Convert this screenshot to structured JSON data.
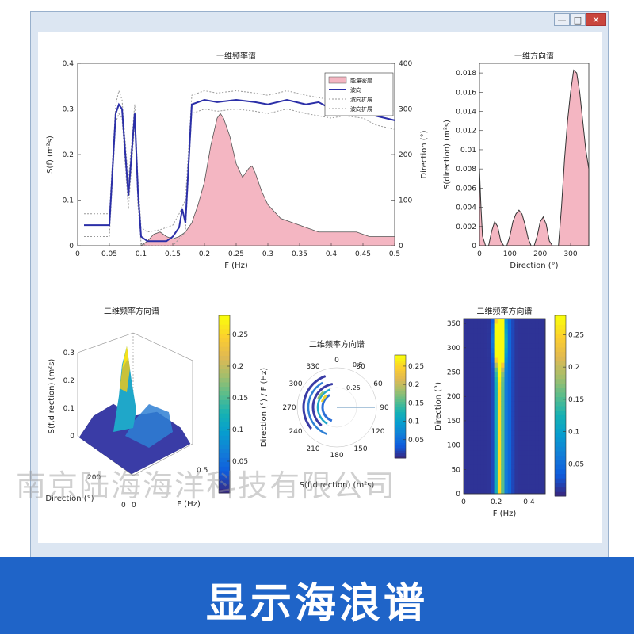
{
  "window": {
    "buttons": [
      "—",
      "□",
      "✕"
    ]
  },
  "watermark": "南京陆海海洋科技有限公司",
  "banner": {
    "text": "显示海浪谱"
  },
  "colors": {
    "fill": "#f4b6c2",
    "line": "#2b2fa8",
    "dotted": "#9a9a9a",
    "banner": "#1f64c8"
  },
  "chart_data": [
    {
      "type": "area",
      "title": "一维频率谱",
      "xlabel": "F (Hz)",
      "ylabel": "S(f) (m²s)",
      "ylabel_right": "Direction (°)",
      "xlim": [
        0,
        0.5
      ],
      "ylim": [
        0,
        0.4
      ],
      "ylim_right": [
        0,
        400
      ],
      "xticks": [
        "0",
        "0.05",
        "0.1",
        "0.15",
        "0.2",
        "0.25",
        "0.3",
        "0.35",
        "0.4",
        "0.45",
        "0.5"
      ],
      "yticks": [
        "0",
        "0.1",
        "0.2",
        "0.3",
        "0.4"
      ],
      "yticks_right": [
        "0",
        "100",
        "200",
        "300",
        "400"
      ],
      "legend": [
        "能量密度",
        "波向",
        "波向扩展",
        "波向扩展"
      ],
      "legend_position": "top-right",
      "series": [
        {
          "name": "能量密度",
          "x": [
            0.1,
            0.11,
            0.12,
            0.13,
            0.14,
            0.15,
            0.16,
            0.17,
            0.18,
            0.19,
            0.2,
            0.21,
            0.22,
            0.225,
            0.23,
            0.24,
            0.25,
            0.26,
            0.27,
            0.275,
            0.28,
            0.29,
            0.3,
            0.32,
            0.34,
            0.36,
            0.38,
            0.4,
            0.42,
            0.44,
            0.46,
            0.48,
            0.5
          ],
          "y": [
            0.0,
            0.01,
            0.025,
            0.03,
            0.02,
            0.015,
            0.02,
            0.03,
            0.05,
            0.09,
            0.14,
            0.22,
            0.28,
            0.29,
            0.28,
            0.24,
            0.18,
            0.15,
            0.17,
            0.175,
            0.16,
            0.12,
            0.09,
            0.06,
            0.05,
            0.04,
            0.03,
            0.03,
            0.03,
            0.03,
            0.02,
            0.02,
            0.02
          ]
        },
        {
          "name": "波向",
          "x": [
            0.01,
            0.05,
            0.06,
            0.065,
            0.07,
            0.08,
            0.09,
            0.095,
            0.1,
            0.11,
            0.12,
            0.13,
            0.14,
            0.15,
            0.16,
            0.165,
            0.17,
            0.18,
            0.2,
            0.22,
            0.25,
            0.28,
            0.3,
            0.33,
            0.36,
            0.38,
            0.4,
            0.42,
            0.45,
            0.47,
            0.5
          ],
          "y": [
            45,
            45,
            290,
            310,
            300,
            110,
            290,
            120,
            20,
            10,
            10,
            10,
            10,
            20,
            40,
            80,
            50,
            310,
            320,
            315,
            320,
            315,
            310,
            320,
            310,
            315,
            300,
            305,
            300,
            285,
            275
          ]
        },
        {
          "name": "波向扩展",
          "x": [
            0.01,
            0.05,
            0.06,
            0.065,
            0.07,
            0.08,
            0.09,
            0.095,
            0.1,
            0.11,
            0.13,
            0.15,
            0.16,
            0.17,
            0.18,
            0.2,
            0.22,
            0.25,
            0.28,
            0.3,
            0.33,
            0.36,
            0.4,
            0.42,
            0.45,
            0.47,
            0.5
          ],
          "y": [
            70,
            70,
            310,
            340,
            320,
            140,
            310,
            150,
            40,
            30,
            35,
            45,
            70,
            100,
            330,
            340,
            335,
            340,
            335,
            330,
            340,
            330,
            320,
            325,
            320,
            305,
            295
          ]
        },
        {
          "name": "波向扩展",
          "x": [
            0.01,
            0.05,
            0.06,
            0.065,
            0.07,
            0.08,
            0.09,
            0.095,
            0.1,
            0.11,
            0.13,
            0.15,
            0.16,
            0.17,
            0.18,
            0.2,
            0.22,
            0.25,
            0.28,
            0.3,
            0.33,
            0.36,
            0.4,
            0.42,
            0.45,
            0.47,
            0.5
          ],
          "y": [
            20,
            20,
            270,
            290,
            280,
            80,
            270,
            90,
            5,
            0,
            0,
            0,
            15,
            30,
            290,
            300,
            295,
            300,
            295,
            290,
            300,
            290,
            280,
            285,
            280,
            265,
            255
          ]
        }
      ]
    },
    {
      "type": "area",
      "title": "一维方向谱",
      "xlabel": "Direction (°)",
      "ylabel": "S(direction) (m²s)",
      "xlim": [
        0,
        360
      ],
      "ylim": [
        0,
        0.019
      ],
      "xticks": [
        "0",
        "100",
        "200",
        "300"
      ],
      "yticks": [
        "0",
        "0.002",
        "0.004",
        "0.006",
        "0.008",
        "0.01",
        "0.012",
        "0.014",
        "0.016",
        "0.018"
      ],
      "x": [
        0,
        5,
        10,
        20,
        30,
        40,
        50,
        60,
        70,
        80,
        90,
        100,
        110,
        120,
        130,
        140,
        150,
        160,
        170,
        180,
        190,
        200,
        210,
        220,
        230,
        240,
        250,
        260,
        270,
        280,
        290,
        300,
        310,
        320,
        330,
        340,
        350,
        360
      ],
      "values": [
        0.008,
        0.004,
        0.001,
        0.0,
        0.0,
        0.0015,
        0.0025,
        0.002,
        0.0005,
        0.0,
        0.0,
        0.001,
        0.0025,
        0.0033,
        0.0037,
        0.0033,
        0.0022,
        0.0008,
        0.0,
        0.0,
        0.001,
        0.0025,
        0.003,
        0.0022,
        0.0005,
        0.0,
        0.0,
        0.0,
        0.004,
        0.009,
        0.013,
        0.016,
        0.0183,
        0.018,
        0.016,
        0.013,
        0.01,
        0.008
      ]
    },
    {
      "type": "surface",
      "title": "二维频率方向谱",
      "xlabel": "F (Hz)",
      "ylabel": "Direction (°)",
      "zlabel": "S(f,direction) (m²s)",
      "zticks": [
        "0",
        "0.1",
        "0.2",
        "0.3"
      ],
      "xticks": [
        "0",
        "0.5"
      ],
      "yticks": [
        "0",
        "200"
      ],
      "colorbar_ticks": [
        "0.05",
        "0.1",
        "0.15",
        "0.2",
        "0.25"
      ]
    },
    {
      "type": "polar",
      "title": "二维频率方向谱",
      "xlabel": "S(f,direction) (m²s)",
      "ylabel": "Direction (°) / F (Hz)",
      "angle_ticks": [
        "0",
        "30",
        "60",
        "90",
        "120",
        "150",
        "180",
        "210",
        "240",
        "270",
        "300",
        "330"
      ],
      "radial_ticks": [
        "0.25",
        "0.5"
      ],
      "colorbar_ticks": [
        "0.05",
        "0.1",
        "0.15",
        "0.2",
        "0.25"
      ]
    },
    {
      "type": "heatmap",
      "title": "二维频率方向谱",
      "xlabel": "F (Hz)",
      "ylabel": "Direction (°)",
      "xlim": [
        0,
        0.5
      ],
      "ylim": [
        0,
        360
      ],
      "xticks": [
        "0",
        "0.2",
        "0.4"
      ],
      "yticks": [
        "0",
        "50",
        "100",
        "150",
        "200",
        "250",
        "300",
        "350"
      ],
      "colorbar_ticks": [
        "0.05",
        "0.1",
        "0.15",
        "0.2",
        "0.25"
      ]
    }
  ]
}
